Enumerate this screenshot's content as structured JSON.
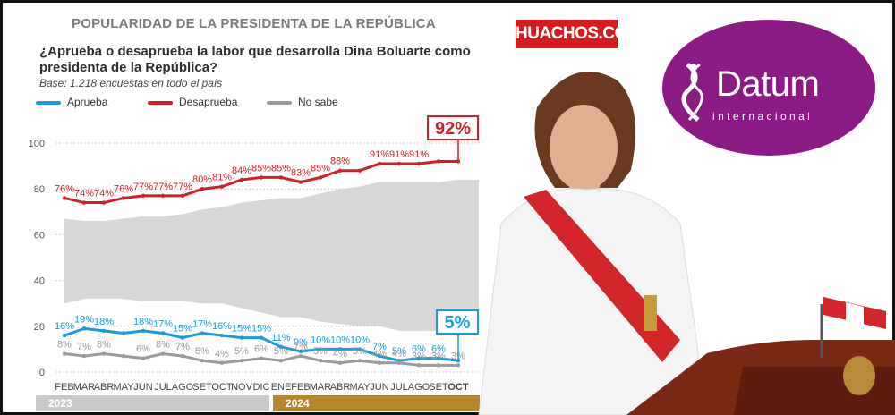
{
  "header": {
    "title": "POPULARIDAD DE LA PRESIDENTA DE LA REPÚBLICA"
  },
  "question": "¿Aprueba o desaprueba la labor que desarrolla Dina Boluarte como presidenta de la República?",
  "base_note": "Base: 1.218 encuestas en todo el país",
  "brand": {
    "site": "HUACHOS.COM",
    "logo_name": "Datum",
    "logo_sub": "internacional"
  },
  "photo": {
    "icon": "person-at-podium-photo"
  },
  "colors": {
    "aprueba": "#1b9bd7",
    "desaprueba": "#d01f27",
    "nosabe": "#9b9b9b",
    "area": "#d7d7d7",
    "band2023": "#c9c9c9",
    "band2024": "#b8862b",
    "logo": "#8b1a84",
    "badge": "#d71920"
  },
  "chart_data": {
    "type": "line",
    "title": "POPULARIDAD DE LA PRESIDENTA DE LA REPÚBLICA",
    "categories": [
      "FEB",
      "MAR",
      "ABR",
      "MAY",
      "JUN",
      "JUL",
      "AGO",
      "SET",
      "OCT",
      "NOV",
      "DIC",
      "ENE",
      "FEB",
      "MAR",
      "ABR",
      "MAY",
      "JUN",
      "JUL",
      "AGO",
      "SET",
      "OCT"
    ],
    "years": [
      {
        "label": "2023",
        "start": 0,
        "end": 10
      },
      {
        "label": "2024",
        "start": 11,
        "end": 20
      }
    ],
    "series": [
      {
        "name": "Aprueba",
        "values": [
          16,
          19,
          18,
          17,
          18,
          17,
          15,
          17,
          16,
          15,
          15,
          11,
          9,
          10,
          10,
          10,
          7,
          5,
          6,
          6,
          5
        ],
        "labels": [
          "16%",
          "19%",
          "18%",
          "",
          "18%",
          "17%",
          "15%",
          "17%",
          "16%",
          "15%",
          "15%",
          "11%",
          "9%",
          "10%",
          "10%",
          "10%",
          "7%",
          "5%",
          "6%",
          "6%",
          ""
        ],
        "callout": "5%"
      },
      {
        "name": "Desaprueba",
        "values": [
          76,
          74,
          74,
          76,
          77,
          77,
          77,
          80,
          81,
          84,
          85,
          85,
          83,
          85,
          88,
          88,
          91,
          91,
          91,
          92,
          92
        ],
        "labels": [
          "76%",
          "74%",
          "74%",
          "76%",
          "77%",
          "77%",
          "77%",
          "80%",
          "81%",
          "84%",
          "85%",
          "85%",
          "83%",
          "85%",
          "88%",
          "",
          "91%",
          "91%",
          "91%",
          "",
          ""
        ],
        "callout": "92%"
      },
      {
        "name": "No sabe",
        "values": [
          8,
          7,
          8,
          7,
          6,
          8,
          7,
          5,
          4,
          5,
          6,
          5,
          7,
          5,
          4,
          5,
          4,
          4,
          3,
          3,
          3
        ],
        "labels": [
          "8%",
          "7%",
          "8%",
          "",
          "6%",
          "8%",
          "7%",
          "5%",
          "4%",
          "5%",
          "6%",
          "5%",
          "7%",
          "5%",
          "4%",
          "5%",
          "4%",
          "4%",
          "3%",
          "3%",
          "3%"
        ]
      }
    ],
    "xlabel": "",
    "ylabel": "",
    "ylim": [
      0,
      100
    ],
    "yticks": [
      0,
      20,
      40,
      60,
      80,
      100
    ],
    "area": {
      "upper": [
        67,
        66,
        66,
        67,
        68,
        68,
        69,
        71,
        72,
        74,
        75,
        76,
        76,
        78,
        80,
        81,
        83,
        83,
        83,
        83,
        84
      ],
      "lower": [
        30,
        32,
        32,
        32,
        31,
        31,
        31,
        30,
        30,
        28,
        26,
        24,
        24,
        22,
        21,
        20,
        20,
        18,
        18,
        18,
        17
      ]
    },
    "grid": true,
    "legend": "top-left"
  }
}
